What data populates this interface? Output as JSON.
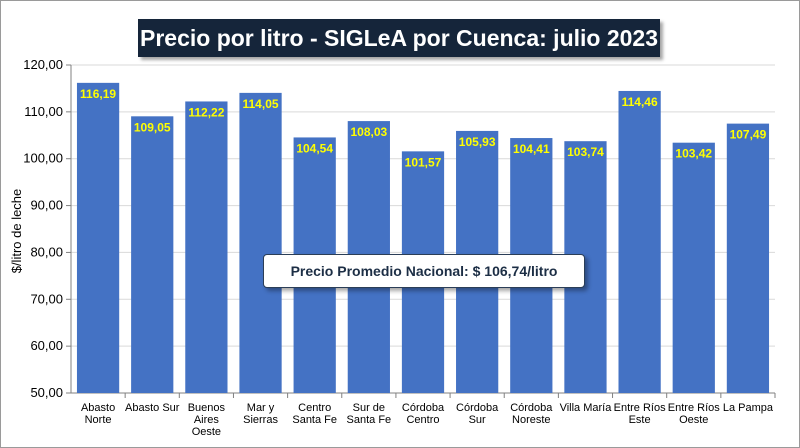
{
  "chart_data": {
    "type": "bar",
    "title": "Precio por litro - SIGLeA por Cuenca: julio 2023",
    "ylabel": "$/litro de leche",
    "xlabel": "",
    "ylim": [
      50,
      120
    ],
    "yticks": [
      "50,00",
      "60,00",
      "70,00",
      "80,00",
      "90,00",
      "100,00",
      "110,00",
      "120,00"
    ],
    "categories": [
      [
        "Abasto",
        "Norte"
      ],
      [
        "Abasto Sur"
      ],
      [
        "Buenos",
        "Aires",
        "Oeste"
      ],
      [
        "Mar y",
        "Sierras"
      ],
      [
        "Centro",
        "Santa Fe"
      ],
      [
        "Sur de",
        "Santa Fe"
      ],
      [
        "Córdoba",
        "Centro"
      ],
      [
        "Córdoba",
        "Sur"
      ],
      [
        "Córdoba",
        "Noreste"
      ],
      [
        "Villa María"
      ],
      [
        "Entre Ríos",
        "Este"
      ],
      [
        "Entre Ríos",
        "Oeste"
      ],
      [
        "La Pampa"
      ]
    ],
    "values": [
      116.19,
      109.05,
      112.22,
      114.05,
      104.54,
      108.03,
      101.57,
      105.93,
      104.41,
      103.74,
      114.46,
      103.42,
      107.49
    ],
    "data_labels": [
      "116,19",
      "109,05",
      "112,22",
      "114,05",
      "104,54",
      "108,03",
      "101,57",
      "105,93",
      "104,41",
      "103,74",
      "114,46",
      "103,42",
      "107,49"
    ],
    "annotation": "Precio Promedio Nacional: $ 106,74/litro",
    "colors": {
      "bar": "#4472c4",
      "label": "#ffff00",
      "title_bg": "#15253a",
      "grid": "#d9d9d9"
    }
  }
}
